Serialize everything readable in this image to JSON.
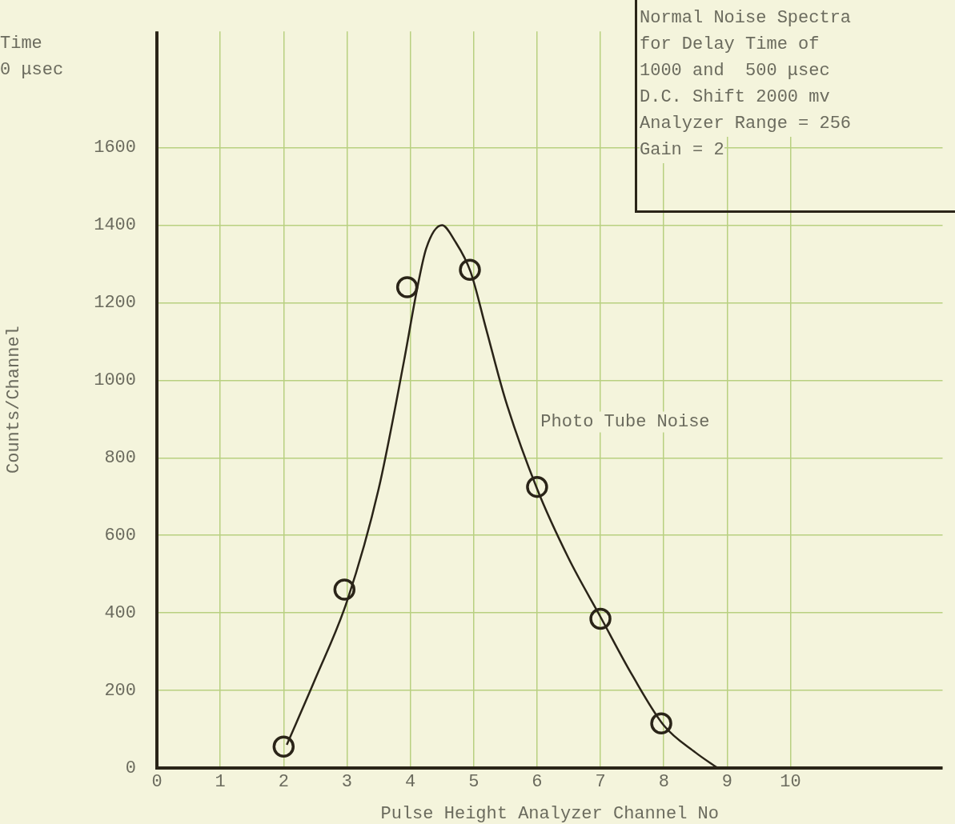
{
  "chart_data": {
    "type": "scatter",
    "xlabel": "Pulse Height Analyzer Channel No",
    "ylabel": "Counts/Channel",
    "annotations": [
      "Time",
      "0 μsec",
      "Normal Noise Spectra",
      "for Delay Time of",
      "1000 and  500 μsec",
      "D.C. Shift 2000 mv",
      "Analyzer Range = 256",
      "Gain = 2"
    ],
    "xlim": [
      0,
      12.4
    ],
    "ylim": [
      0,
      1900
    ],
    "xticks": [
      0,
      1,
      2,
      3,
      4,
      5,
      6,
      7,
      8,
      9,
      10
    ],
    "yticks": [
      0,
      200,
      400,
      600,
      800,
      1000,
      1200,
      1400,
      1600
    ],
    "grid": true,
    "legend": false,
    "series": [
      {
        "type": "scatter",
        "color": "#2a2418",
        "marker": "circle",
        "x": [
          2.0,
          2.96,
          3.95,
          4.94,
          6.0,
          7.0,
          7.96
        ],
        "values": [
          55,
          460,
          1240,
          1285,
          725,
          385,
          115
        ]
      },
      {
        "type": "line",
        "name": "Photo Tube Noise",
        "color": "#2a2418",
        "marker": "none",
        "line_style": "solid",
        "x": [
          2.05,
          2.5,
          3,
          3.5,
          3.9,
          4.1,
          4.25,
          4.5,
          4.7,
          4.95,
          5.2,
          5.5,
          6,
          6.5,
          7,
          7.5,
          8,
          8.5,
          8.85
        ],
        "values": [
          60,
          230,
          430,
          720,
          1050,
          1230,
          1340,
          1400,
          1360,
          1280,
          1130,
          950,
          720,
          540,
          390,
          240,
          110,
          40,
          0
        ]
      }
    ]
  }
}
